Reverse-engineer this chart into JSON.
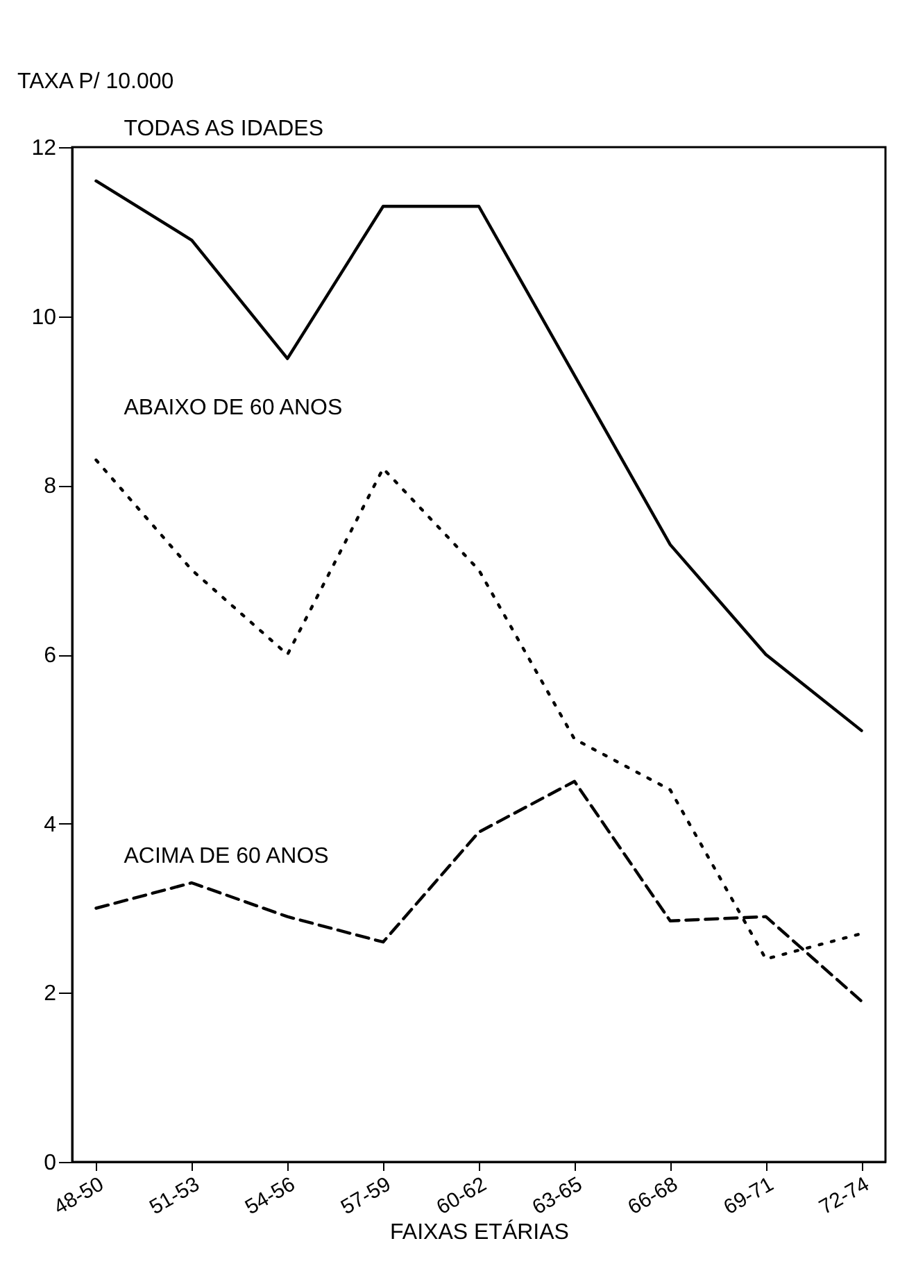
{
  "chart_data": {
    "type": "line",
    "xlabel": "FAIXAS ETÁRIAS",
    "ylabel": "TAXA P/ 10.000",
    "categories": [
      "48-50",
      "51-53",
      "54-56",
      "57-59",
      "60-62",
      "63-65",
      "66-68",
      "69-71",
      "72-74"
    ],
    "ylim": [
      0,
      12
    ],
    "yticks": [
      0,
      2,
      4,
      6,
      8,
      10,
      12
    ],
    "grid": false,
    "series": [
      {
        "name": "TODAS AS IDADES",
        "color": "#000000",
        "line_style": "solid",
        "values": [
          11.6,
          10.9,
          9.5,
          11.3,
          11.3,
          9.3,
          7.3,
          6.0,
          5.1
        ]
      },
      {
        "name": "ABAIXO DE 60 ANOS",
        "color": "#000000",
        "line_style": "dotted",
        "values": [
          8.3,
          7.0,
          6.0,
          8.2,
          7.0,
          5.0,
          4.4,
          2.4,
          2.7
        ]
      },
      {
        "name": "ACIMA DE 60 ANOS",
        "color": "#000000",
        "line_style": "dashed",
        "values": [
          3.0,
          3.3,
          2.9,
          2.6,
          3.9,
          4.5,
          2.85,
          2.9,
          1.9
        ]
      }
    ]
  }
}
